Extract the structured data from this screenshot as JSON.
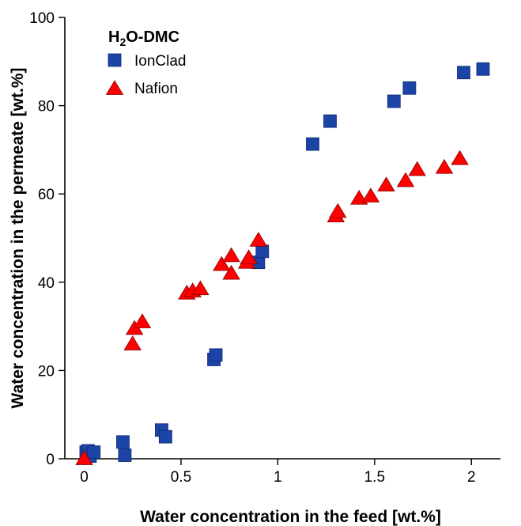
{
  "chart_data": {
    "type": "scatter",
    "legend_title": {
      "main": "H",
      "sub": "2",
      "rest": "O-DMC"
    },
    "xlabel": "Water concentration in the feed [wt.%]",
    "ylabel": "Water concentration in the permeate [wt.%]",
    "xlim": [
      -0.1,
      2.15
    ],
    "ylim": [
      0,
      100
    ],
    "xticks": [
      "0",
      "0.5",
      "1",
      "1.5",
      "2"
    ],
    "yticks": [
      "0",
      "20",
      "40",
      "60",
      "80",
      "100"
    ],
    "xtick_values": [
      0,
      0.5,
      1,
      1.5,
      2
    ],
    "ytick_values": [
      0,
      20,
      40,
      60,
      80,
      100
    ],
    "grid": false,
    "legend_position": "top-left",
    "series": [
      {
        "name": "IonClad",
        "marker": "square",
        "color": "#1c44a6",
        "points": [
          [
            0.01,
            1.5
          ],
          [
            0.02,
            1.8
          ],
          [
            0.03,
            0.6
          ],
          [
            0.05,
            1.5
          ],
          [
            0.2,
            3.8
          ],
          [
            0.21,
            0.8
          ],
          [
            0.4,
            6.5
          ],
          [
            0.42,
            5.0
          ],
          [
            0.67,
            22.5
          ],
          [
            0.68,
            23.5
          ],
          [
            0.9,
            44.5
          ],
          [
            0.92,
            47.0
          ],
          [
            1.18,
            71.3
          ],
          [
            1.27,
            76.5
          ],
          [
            1.6,
            81.0
          ],
          [
            1.68,
            84.0
          ],
          [
            1.96,
            87.5
          ],
          [
            2.06,
            88.3
          ]
        ]
      },
      {
        "name": "Nafion",
        "marker": "triangle",
        "color": "#ff0000",
        "points": [
          [
            0.0,
            0.0
          ],
          [
            0.25,
            26.0
          ],
          [
            0.26,
            29.5
          ],
          [
            0.3,
            31.0
          ],
          [
            0.53,
            37.5
          ],
          [
            0.56,
            38.0
          ],
          [
            0.6,
            38.5
          ],
          [
            0.71,
            44.0
          ],
          [
            0.76,
            42.0
          ],
          [
            0.76,
            46.0
          ],
          [
            0.84,
            44.5
          ],
          [
            0.85,
            45.5
          ],
          [
            0.9,
            49.5
          ],
          [
            1.3,
            55.0
          ],
          [
            1.31,
            56.0
          ],
          [
            1.42,
            59.0
          ],
          [
            1.48,
            59.5
          ],
          [
            1.56,
            62.0
          ],
          [
            1.66,
            63.0
          ],
          [
            1.72,
            65.5
          ],
          [
            1.86,
            66.0
          ],
          [
            1.94,
            68.0
          ]
        ]
      }
    ]
  }
}
